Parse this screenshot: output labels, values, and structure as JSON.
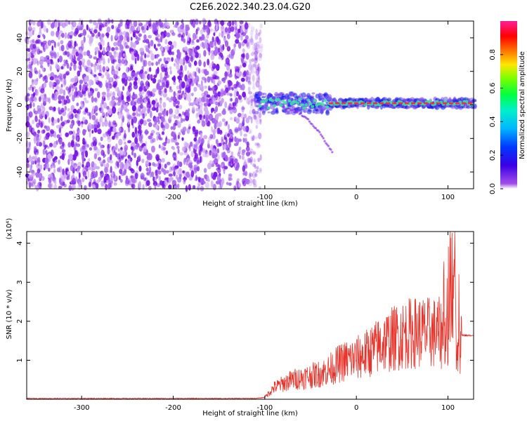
{
  "figure_title": "C2E6.2022.340.23.04.G20",
  "colors": {
    "snr_line": "#e8332a",
    "spectrogram_scatter": "#7a16e8",
    "spectrogram_light": "#cfa8f5",
    "track_center": "#ff2a2a",
    "track_mid": "#34e69c",
    "track_outer": "#1a1aee"
  },
  "chart_data": [
    {
      "type": "heatmap",
      "title": "",
      "xlabel": "Height of straight line (km)",
      "ylabel": "Frequency (Hz)",
      "xlim": [
        -360,
        128
      ],
      "ylim": [
        -50,
        50
      ],
      "x_ticks": [
        -300,
        -200,
        -100,
        0,
        100
      ],
      "y_ticks": [
        -40,
        -20,
        0,
        20,
        40
      ],
      "colorbar": {
        "label": "Normalized spectral amplitude",
        "range": [
          0.0,
          1.0
        ],
        "ticks": [
          "0.0",
          "0.2",
          "0.4",
          "0.6",
          "0.8"
        ],
        "colormap": "rainbow (violet=0 to red/magenta=1)"
      },
      "regions": [
        {
          "name": "noise",
          "x_range": [
            -360,
            -110
          ],
          "freq_range": [
            -50,
            50
          ],
          "amplitude": "low (0.0–0.2)"
        },
        {
          "name": "signal track",
          "x_range": [
            -110,
            128
          ],
          "freq_center": 1,
          "amplitude": "high (0.4–1.0)"
        },
        {
          "name": "descending branch",
          "x_range": [
            -70,
            -30
          ],
          "freq_range": [
            -30,
            -5
          ],
          "amplitude": "low"
        }
      ]
    },
    {
      "type": "line",
      "title": "",
      "xlabel": "Height of straight line (km)",
      "ylabel": "SNR (10 * v/v)",
      "y_scale_label": "(x10⁴)",
      "xlim": [
        -360,
        128
      ],
      "ylim": [
        0,
        4.3
      ],
      "x_ticks": [
        -300,
        -200,
        -100,
        0,
        100
      ],
      "y_ticks": [
        1,
        2,
        3,
        4
      ],
      "series": [
        {
          "x": [
            -360,
            -300,
            -200,
            -110,
            -100,
            -90,
            -80,
            -70,
            -60,
            -50,
            -40,
            -30,
            -20,
            -10,
            0,
            10,
            20,
            30,
            40,
            50,
            60,
            70,
            80,
            90,
            100,
            105,
            110,
            115,
            128
          ],
          "y": [
            0.02,
            0.02,
            0.02,
            0.02,
            0.05,
            0.3,
            0.4,
            0.5,
            0.55,
            0.6,
            0.65,
            0.75,
            0.9,
            1.0,
            1.05,
            1.15,
            1.3,
            1.45,
            1.55,
            1.65,
            1.7,
            1.72,
            1.7,
            1.7,
            1.6,
            3.5,
            1.0,
            1.65,
            1.62
          ]
        }
      ]
    }
  ]
}
